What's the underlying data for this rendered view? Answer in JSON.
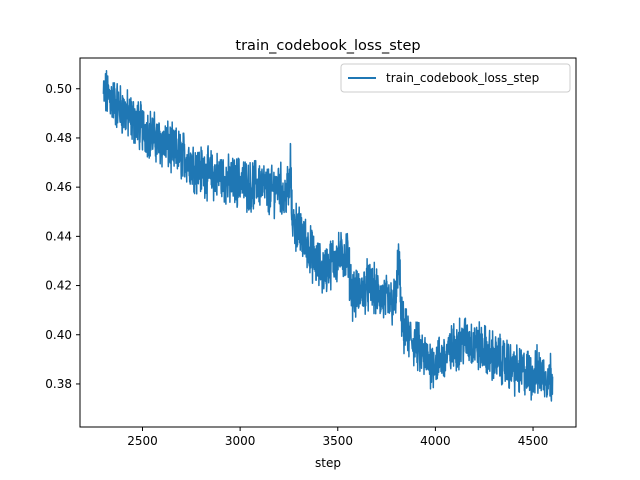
{
  "chart_data": {
    "type": "line",
    "title": "train_codebook_loss_step",
    "xlabel": "step",
    "ylabel": "",
    "xlim": [
      2180,
      4720
    ],
    "ylim": [
      0.3625,
      0.5125
    ],
    "xticks": [
      2500,
      3000,
      3500,
      4000,
      4500
    ],
    "yticks": [
      0.38,
      0.4,
      0.42,
      0.44,
      0.46,
      0.48,
      0.5
    ],
    "xtick_labels": [
      "2500",
      "3000",
      "3500",
      "4000",
      "4500"
    ],
    "ytick_labels": [
      "0.38",
      "0.40",
      "0.42",
      "0.44",
      "0.46",
      "0.48",
      "0.50"
    ],
    "grid": false,
    "legend_position": "upper right",
    "series": [
      {
        "name": "train_codebook_loss_step",
        "color": "#1f77b4",
        "x": [
          2300,
          2325,
          2350,
          2375,
          2400,
          2425,
          2450,
          2475,
          2500,
          2525,
          2550,
          2575,
          2600,
          2625,
          2650,
          2675,
          2700,
          2725,
          2750,
          2775,
          2800,
          2825,
          2850,
          2875,
          2900,
          2925,
          2950,
          2975,
          3000,
          3025,
          3050,
          3075,
          3100,
          3125,
          3150,
          3175,
          3200,
          3210,
          3225,
          3240,
          3250,
          3258,
          3265,
          3275,
          3300,
          3325,
          3350,
          3375,
          3400,
          3425,
          3450,
          3475,
          3500,
          3525,
          3550,
          3560,
          3575,
          3600,
          3625,
          3650,
          3675,
          3700,
          3725,
          3750,
          3775,
          3800,
          3810,
          3818,
          3825,
          3850,
          3875,
          3900,
          3925,
          3950,
          3975,
          4000,
          4025,
          4050,
          4075,
          4100,
          4125,
          4150,
          4175,
          4200,
          4225,
          4250,
          4275,
          4300,
          4325,
          4350,
          4375,
          4400,
          4425,
          4450,
          4475,
          4500,
          4525,
          4550,
          4575,
          4600
        ],
        "y": [
          0.497,
          0.498,
          0.495,
          0.493,
          0.491,
          0.489,
          0.487,
          0.486,
          0.484,
          0.483,
          0.481,
          0.479,
          0.478,
          0.477,
          0.475,
          0.474,
          0.473,
          0.472,
          0.47,
          0.468,
          0.467,
          0.466,
          0.465,
          0.464,
          0.465,
          0.463,
          0.462,
          0.462,
          0.463,
          0.461,
          0.46,
          0.461,
          0.462,
          0.46,
          0.458,
          0.459,
          0.462,
          0.459,
          0.455,
          0.46,
          0.457,
          0.47,
          0.448,
          0.446,
          0.442,
          0.439,
          0.436,
          0.431,
          0.428,
          0.426,
          0.428,
          0.43,
          0.431,
          0.432,
          0.433,
          0.425,
          0.417,
          0.416,
          0.418,
          0.42,
          0.419,
          0.417,
          0.415,
          0.414,
          0.413,
          0.414,
          0.432,
          0.424,
          0.405,
          0.4,
          0.398,
          0.396,
          0.393,
          0.39,
          0.389,
          0.389,
          0.39,
          0.391,
          0.393,
          0.395,
          0.397,
          0.398,
          0.397,
          0.396,
          0.395,
          0.394,
          0.392,
          0.391,
          0.39,
          0.389,
          0.388,
          0.386,
          0.385,
          0.385,
          0.384,
          0.384,
          0.385,
          0.384,
          0.383,
          0.383
        ]
      }
    ]
  }
}
